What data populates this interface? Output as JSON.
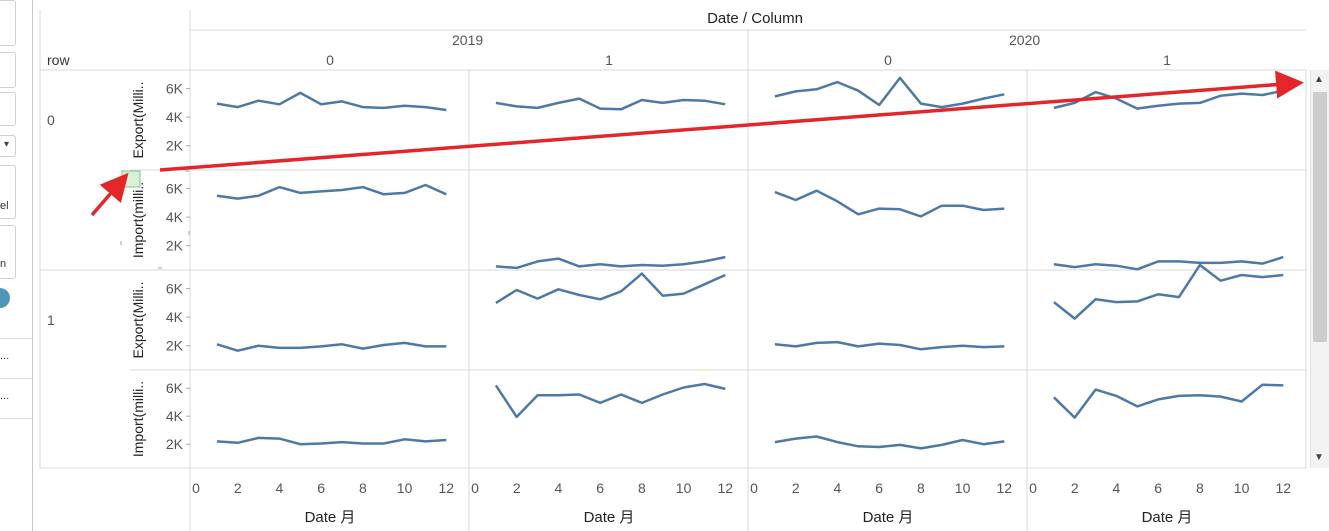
{
  "header": {
    "title": "Date / Column",
    "row_label": "row"
  },
  "years": [
    "2019",
    "2020"
  ],
  "columns": [
    "0",
    "1",
    "0",
    "1"
  ],
  "rows": [
    "0",
    "1"
  ],
  "x_axis_label": "Date 月",
  "left_panel": {
    "item_1": "el",
    "item_2": "n",
    "item_3": "...",
    "item_4": "..."
  },
  "colors": {
    "line": "#4e79a7",
    "annotation_arrow": "#e3262a",
    "grid": "#d9d9d9"
  },
  "chart_data": {
    "type": "line",
    "x_ticks": [
      0,
      2,
      4,
      6,
      8,
      10,
      12
    ],
    "xlim": [
      0,
      12.8
    ],
    "y_ticks": [
      "2K",
      "4K",
      "6K"
    ],
    "y_tick_values": [
      2000,
      4000,
      6000
    ],
    "ylim": [
      300,
      7300
    ],
    "x": [
      1,
      2,
      3,
      4,
      5,
      6,
      7,
      8,
      9,
      10,
      11,
      12
    ],
    "panels": [
      {
        "row": "0",
        "measure": "Export(Milli..",
        "year": "2019",
        "column": "0",
        "values": [
          4950,
          4700,
          5150,
          4900,
          5700,
          4900,
          5100,
          4700,
          4650,
          4800,
          4700,
          4500
        ]
      },
      {
        "row": "0",
        "measure": "Export(Milli..",
        "year": "2019",
        "column": "1",
        "values": [
          5000,
          4750,
          4650,
          5000,
          5300,
          4600,
          4550,
          5200,
          5000,
          5200,
          5150,
          4900
        ]
      },
      {
        "row": "0",
        "measure": "Export(Milli..",
        "year": "2020",
        "column": "0",
        "values": [
          5450,
          5800,
          5950,
          6450,
          5850,
          4850,
          6750,
          4950,
          4700,
          4950,
          5300,
          5600
        ]
      },
      {
        "row": "0",
        "measure": "Export(Milli..",
        "year": "2020",
        "column": "1",
        "values": [
          4650,
          5000,
          5750,
          5300,
          4600,
          4800,
          4950,
          5000,
          5500,
          5650,
          5550,
          5850
        ]
      },
      {
        "row": "0",
        "measure": "Import(milli..",
        "year": "2019",
        "column": "0",
        "values": [
          5500,
          5300,
          5500,
          6100,
          5700,
          5800,
          5900,
          6100,
          5600,
          5700,
          6250,
          5600
        ]
      },
      {
        "row": "0",
        "measure": "Import(milli..",
        "year": "2019",
        "column": "1",
        "values": [
          550,
          450,
          900,
          1100,
          550,
          700,
          550,
          650,
          600,
          700,
          900,
          1200
        ]
      },
      {
        "row": "0",
        "measure": "Import(milli..",
        "year": "2020",
        "column": "0",
        "values": [
          5750,
          5200,
          5850,
          5100,
          4200,
          4600,
          4550,
          4050,
          4800,
          4800,
          4500,
          4600
        ]
      },
      {
        "row": "0",
        "measure": "Import(milli..",
        "year": "2020",
        "column": "1",
        "values": [
          700,
          500,
          700,
          600,
          350,
          900,
          900,
          800,
          800,
          900,
          750,
          1200
        ]
      },
      {
        "row": "1",
        "measure": "Export(Milli..",
        "year": "2019",
        "column": "0",
        "values": [
          2100,
          1650,
          2000,
          1850,
          1850,
          1950,
          2100,
          1800,
          2050,
          2200,
          1950,
          1950
        ]
      },
      {
        "row": "1",
        "measure": "Export(Milli..",
        "year": "2019",
        "column": "1",
        "values": [
          5000,
          5900,
          5300,
          5950,
          5550,
          5250,
          5800,
          7050,
          5500,
          5650,
          6300,
          6950
        ]
      },
      {
        "row": "1",
        "measure": "Export(Milli..",
        "year": "2020",
        "column": "0",
        "values": [
          2100,
          1950,
          2200,
          2250,
          1950,
          2150,
          2050,
          1750,
          1900,
          2000,
          1900,
          1950
        ]
      },
      {
        "row": "1",
        "measure": "Export(Milli..",
        "year": "2020",
        "column": "1",
        "values": [
          5050,
          3900,
          5250,
          5050,
          5100,
          5600,
          5400,
          7650,
          6550,
          6950,
          6800,
          6950
        ]
      },
      {
        "row": "1",
        "measure": "Import(milli..",
        "year": "2019",
        "column": "0",
        "values": [
          2200,
          2100,
          2450,
          2400,
          2000,
          2050,
          2150,
          2050,
          2050,
          2350,
          2200,
          2300
        ]
      },
      {
        "row": "1",
        "measure": "Import(milli..",
        "year": "2019",
        "column": "1",
        "values": [
          6200,
          3950,
          5500,
          5500,
          5550,
          4950,
          5550,
          4950,
          5550,
          6050,
          6300,
          5950
        ]
      },
      {
        "row": "1",
        "measure": "Import(milli..",
        "year": "2020",
        "column": "0",
        "values": [
          2150,
          2400,
          2550,
          2150,
          1850,
          1800,
          1950,
          1700,
          1950,
          2300,
          2000,
          2200
        ]
      },
      {
        "row": "1",
        "measure": "Import(milli..",
        "year": "2020",
        "column": "1",
        "values": [
          5350,
          3900,
          5900,
          5450,
          4700,
          5200,
          5450,
          5500,
          5400,
          5050,
          6250,
          6200
        ]
      }
    ]
  }
}
